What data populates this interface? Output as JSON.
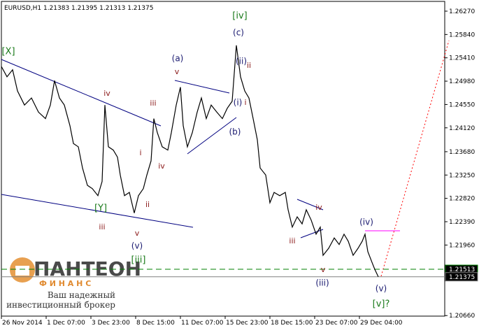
{
  "chart_data": {
    "type": "line",
    "title": "EURUSD,H1  1.21383  1.21395  1.21313  1.21375",
    "x": [
      2,
      10,
      18,
      25,
      35,
      45,
      55,
      65,
      72,
      78,
      85,
      92,
      100,
      105,
      112,
      118,
      125,
      132,
      140,
      146,
      150,
      155,
      162,
      168,
      172,
      178,
      185,
      192,
      198,
      205,
      210,
      216,
      220,
      225,
      232,
      240,
      245,
      252,
      258,
      262,
      268,
      275,
      282,
      288,
      295,
      302,
      310,
      318,
      325,
      332,
      338,
      344,
      350,
      356,
      362,
      368,
      372,
      380,
      386,
      392,
      400,
      408,
      412,
      418,
      425,
      432,
      438,
      445,
      452,
      458,
      462,
      470,
      478,
      485,
      492,
      498,
      505,
      512,
      518,
      522,
      526,
      532,
      536,
      541
    ],
    "series": [
      {
        "name": "EURUSD",
        "color": "#000000",
        "values": [
          1.2525,
          1.2506,
          1.2519,
          1.248,
          1.2454,
          1.2467,
          1.2441,
          1.2429,
          1.2454,
          1.2499,
          1.2467,
          1.2454,
          1.2416,
          1.2383,
          1.2377,
          1.2338,
          1.2306,
          1.23,
          1.2287,
          1.2313,
          1.2454,
          1.2377,
          1.2371,
          1.2358,
          1.2325,
          1.2287,
          1.2293,
          1.2255,
          1.2287,
          1.23,
          1.2325,
          1.2351,
          1.2429,
          1.2403,
          1.2377,
          1.2371,
          1.2403,
          1.2454,
          1.2487,
          1.2416,
          1.2377,
          1.2403,
          1.2441,
          1.2467,
          1.2429,
          1.2454,
          1.2441,
          1.2429,
          1.2448,
          1.2461,
          1.2564,
          1.2506,
          1.248,
          1.2467,
          1.2429,
          1.239,
          1.2338,
          1.2325,
          1.2274,
          1.2293,
          1.2287,
          1.2293,
          1.2261,
          1.2229,
          1.2248,
          1.2235,
          1.2261,
          1.2242,
          1.2216,
          1.2229,
          1.2177,
          1.219,
          1.2209,
          1.2197,
          1.2216,
          1.2203,
          1.2177,
          1.219,
          1.2203,
          1.2216,
          1.2184,
          1.2164,
          1.2151,
          1.21375
        ]
      }
    ],
    "xlim": [
      2,
      636
    ],
    "xticks": [
      {
        "value": 2,
        "label": "26 Nov 2014"
      },
      {
        "value": 66,
        "label": "1 Dec 07:00"
      },
      {
        "value": 130,
        "label": "3 Dec 23:00"
      },
      {
        "value": 194,
        "label": "8 Dec 15:00"
      },
      {
        "value": 258,
        "label": "11 Dec 07:00"
      },
      {
        "value": 322,
        "label": "15 Dec 23:00"
      },
      {
        "value": 386,
        "label": "18 Dec 15:00"
      },
      {
        "value": 450,
        "label": "23 Dec 07:00"
      },
      {
        "value": 514,
        "label": "29 Dec 04:00"
      }
    ],
    "ylim": [
      1.2065,
      1.2645
    ],
    "yticks": [
      {
        "value": 1.2627,
        "label": "1.26270"
      },
      {
        "value": 1.2584,
        "label": "1.25840"
      },
      {
        "value": 1.2541,
        "label": "1.25410"
      },
      {
        "value": 1.2498,
        "label": "1.24980"
      },
      {
        "value": 1.2455,
        "label": "1.24550"
      },
      {
        "value": 1.2412,
        "label": "1.24120"
      },
      {
        "value": 1.2368,
        "label": "1.23680"
      },
      {
        "value": 1.2325,
        "label": "1.23250"
      },
      {
        "value": 1.2282,
        "label": "1.22820"
      },
      {
        "value": 1.2239,
        "label": "1.22390"
      },
      {
        "value": 1.2196,
        "label": "1.21960"
      },
      {
        "value": 1.2066,
        "label": "1.20660"
      }
    ],
    "levels": [
      {
        "value": 1.21513,
        "color": "#008000"
      },
      {
        "value": 1.21375,
        "color": "#808080"
      }
    ],
    "annotations": [
      "[X]",
      "(a)",
      "v",
      "[iv]",
      "(c)",
      "(ii)",
      "ii",
      "iv",
      "iii",
      "(i)",
      "i",
      "(b)",
      "i",
      "iv",
      "ii",
      "[Y]",
      "iii",
      "v",
      "(v)",
      "[iii]",
      "iv",
      "iii",
      "(iv)",
      "v",
      "(iii)",
      "(v)",
      "[v]?"
    ]
  },
  "logo": {
    "name": "ПАНТЕОН",
    "sub": "Ф И Н А Н С",
    "tagline": [
      "Ваш надежный",
      "инвестиционный брокер"
    ]
  }
}
